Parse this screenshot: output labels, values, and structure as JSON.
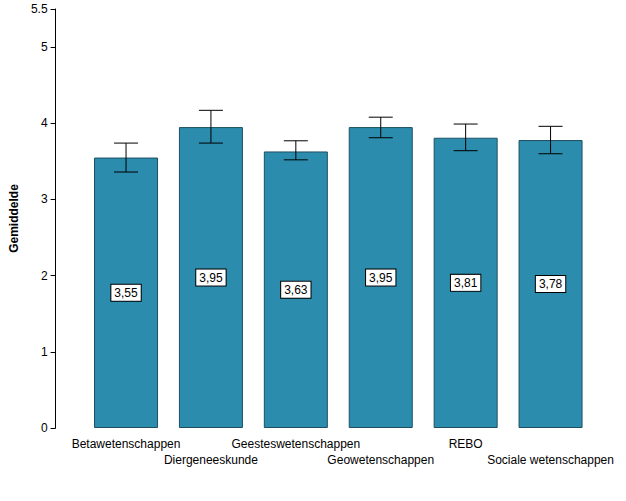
{
  "chart_data": {
    "type": "bar",
    "y_label": "Gemiddelde",
    "categories": [
      "Betawetenschappen",
      "Diergeneeskunde",
      "Geesteswetenschappen",
      "Geowetenschappen",
      "REBO",
      "Sociale wetenschappen"
    ],
    "values": [
      3.55,
      3.95,
      3.63,
      3.95,
      3.81,
      3.78
    ],
    "value_labels": [
      "3,55",
      "3,95",
      "3,63",
      "3,95",
      "3,81",
      "3,78"
    ],
    "error_low": [
      3.36,
      3.74,
      3.52,
      3.81,
      3.64,
      3.6
    ],
    "error_high": [
      3.74,
      4.17,
      3.77,
      4.08,
      3.99,
      3.96
    ],
    "color": "#2b8cad",
    "ylim": [
      0,
      5.5
    ],
    "yticks": [
      0,
      1,
      2,
      3,
      4,
      5
    ],
    "grid": false,
    "data_labels": true
  }
}
